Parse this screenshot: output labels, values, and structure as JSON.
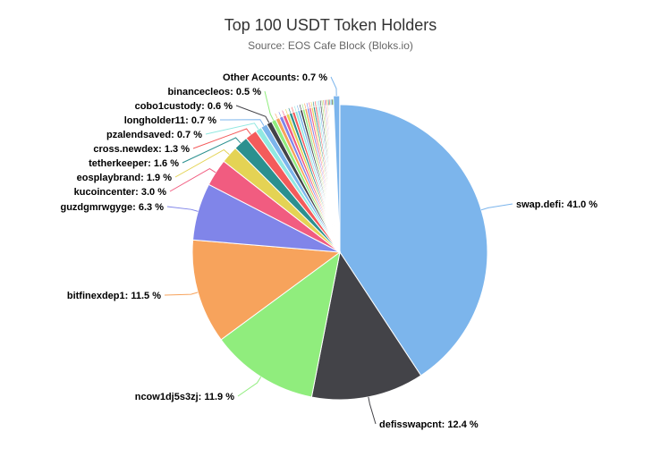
{
  "chart_data": {
    "type": "pie",
    "title": "Top 100 USDT Token Holders",
    "subtitle": "Source: EOS Cafe Block (Bloks.io)",
    "slices": [
      {
        "name": "swap.defi",
        "value": 41.0,
        "label": "swap.defi: 41.0 %",
        "color": "#7cb5ec"
      },
      {
        "name": "defisswapcnt",
        "value": 12.4,
        "label": "defisswapcnt: 12.4 %",
        "color": "#434348"
      },
      {
        "name": "ncow1dj5s3zj",
        "value": 11.9,
        "label": "ncow1dj5s3zj: 11.9 %",
        "color": "#90ed7d"
      },
      {
        "name": "bitfinexdep1",
        "value": 11.5,
        "label": "bitfinexdep1: 11.5 %",
        "color": "#f7a35c"
      },
      {
        "name": "guzdgmrwgyge",
        "value": 6.3,
        "label": "guzdgmrwgyge: 6.3 %",
        "color": "#8085e9"
      },
      {
        "name": "kucoincenter",
        "value": 3.0,
        "label": "kucoincenter: 3.0 %",
        "color": "#f15c80"
      },
      {
        "name": "eosplaybrand",
        "value": 1.9,
        "label": "eosplaybrand: 1.9 %",
        "color": "#e4d354"
      },
      {
        "name": "tetherkeeper",
        "value": 1.6,
        "label": "tetherkeeper: 1.6 %",
        "color": "#2b908f"
      },
      {
        "name": "cross.newdex",
        "value": 1.3,
        "label": "cross.newdex: 1.3 %",
        "color": "#f45b5b"
      },
      {
        "name": "pzalendsaved",
        "value": 0.7,
        "label": "pzalendsaved: 0.7 %",
        "color": "#91e8e1"
      },
      {
        "name": "longholder11",
        "value": 0.7,
        "label": "longholder11: 0.7 %",
        "color": "#7cb5ec"
      },
      {
        "name": "cobo1custody",
        "value": 0.6,
        "label": "cobo1custody: 0.6 %",
        "color": "#434348"
      },
      {
        "name": "binancecleos",
        "value": 0.5,
        "label": "binancecleos: 0.5 %",
        "color": "#90ed7d"
      },
      {
        "name": "Other Accounts",
        "value": 0.7,
        "label": "Other Accounts: 0.7 %",
        "color": "#7cb5ec",
        "sliced": true
      }
    ],
    "small_slices_values": [
      0.45,
      0.4,
      0.38,
      0.36,
      0.34,
      0.32,
      0.3,
      0.28,
      0.27,
      0.26,
      0.25,
      0.24,
      0.23,
      0.22,
      0.21,
      0.2,
      0.19,
      0.18,
      0.17,
      0.16,
      0.15,
      0.14,
      0.13,
      0.12,
      0.11,
      0.1,
      0.1,
      0.09,
      0.09,
      0.08
    ],
    "small_slices_colors": [
      "#f7a35c",
      "#8085e9",
      "#f15c80",
      "#e4d354",
      "#2b908f",
      "#f45b5b",
      "#91e8e1",
      "#7cb5ec",
      "#434348",
      "#90ed7d"
    ]
  }
}
